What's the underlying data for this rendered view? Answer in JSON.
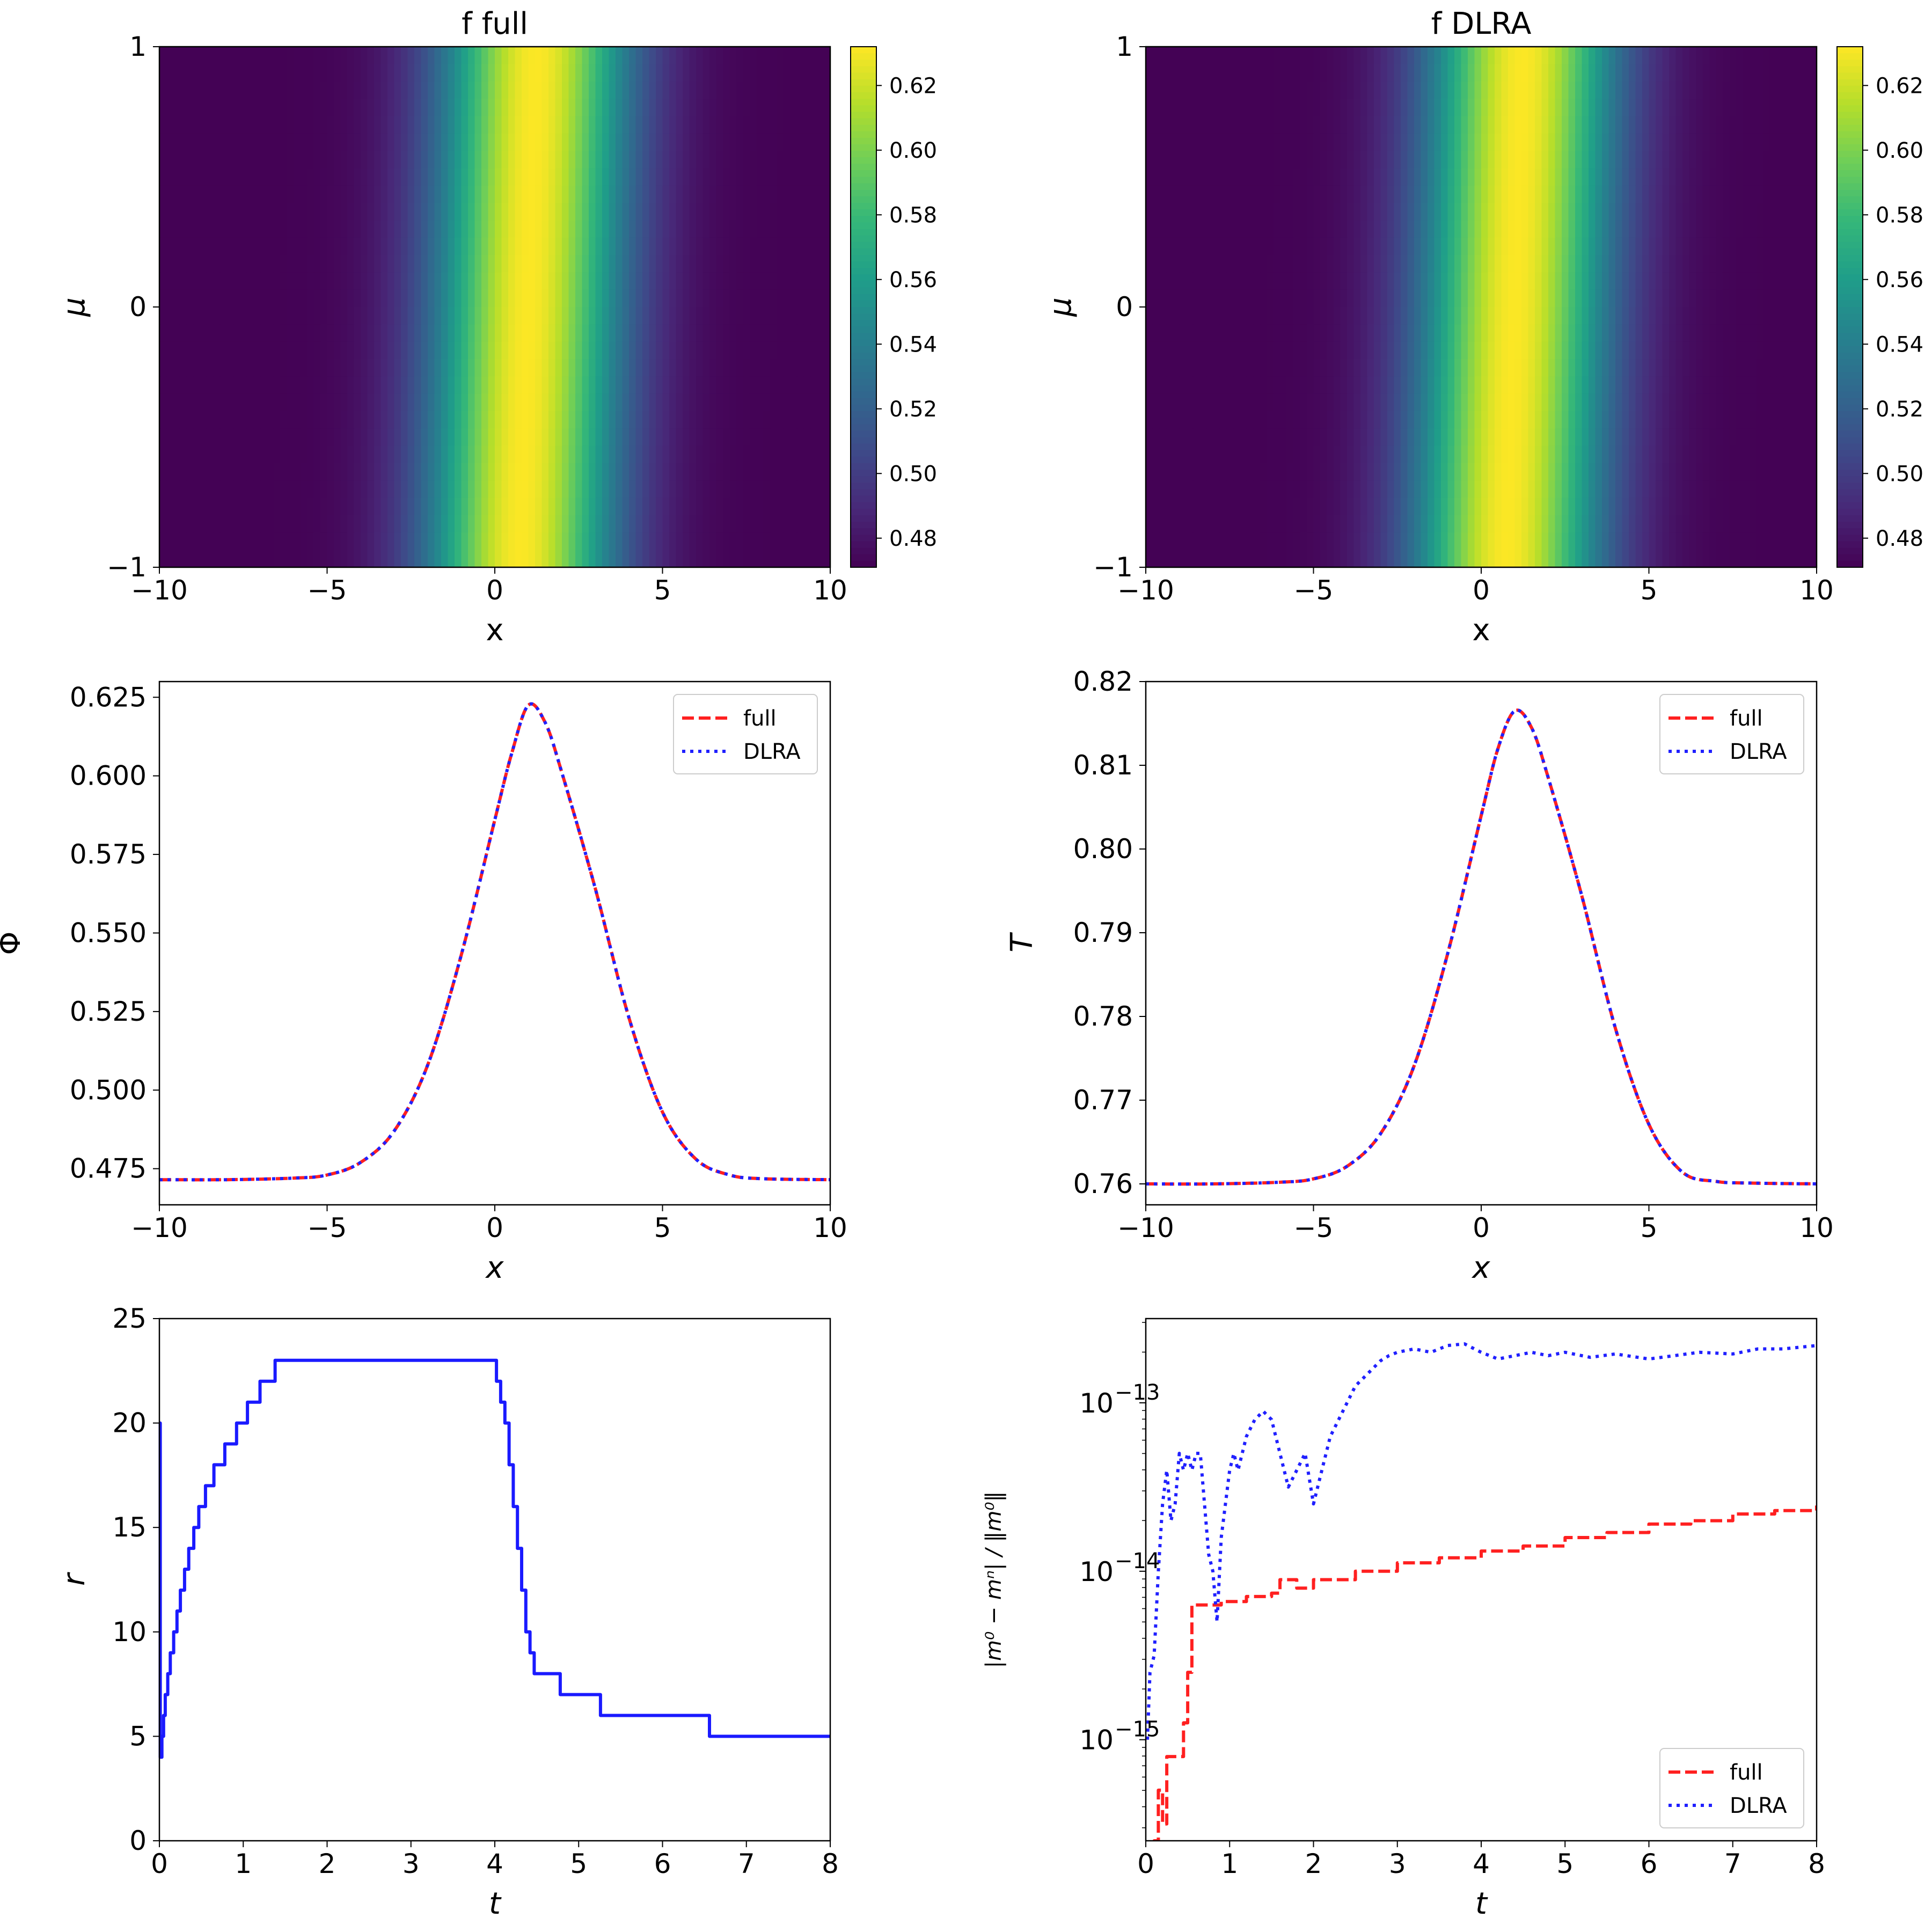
{
  "chart_data": [
    {
      "type": "heatmap",
      "title": "f full",
      "xlabel": "x",
      "ylabel": "μ",
      "xlim": [
        -10,
        10
      ],
      "ylim": [
        -1,
        1
      ],
      "xticks": [
        -10,
        -5,
        0,
        5,
        10
      ],
      "yticks": [
        -1,
        0,
        1
      ],
      "xtick_labels": [
        "−10",
        "−5",
        "0",
        "5",
        "10"
      ],
      "ytick_labels": [
        "−1",
        "0",
        "1"
      ],
      "profile": {
        "center": 1.0,
        "width": 2.0,
        "tilt": 0.25,
        "min": 0.4715,
        "max": 0.6315
      },
      "colorbar": {
        "vmin": 0.471,
        "vmax": 0.632,
        "ticks": [
          0.48,
          0.5,
          0.52,
          0.54,
          0.56,
          0.58,
          0.6,
          0.62
        ],
        "tick_labels": [
          "0.48",
          "0.50",
          "0.52",
          "0.54",
          "0.56",
          "0.58",
          "0.60",
          "0.62"
        ]
      }
    },
    {
      "type": "heatmap",
      "title": "f DLRA",
      "xlabel": "x",
      "ylabel": "μ",
      "xlim": [
        -10,
        10
      ],
      "ylim": [
        -1,
        1
      ],
      "xticks": [
        -10,
        -5,
        0,
        5,
        10
      ],
      "yticks": [
        -1,
        0,
        1
      ],
      "xtick_labels": [
        "−10",
        "−5",
        "0",
        "5",
        "10"
      ],
      "ytick_labels": [
        "−1",
        "0",
        "1"
      ],
      "profile": {
        "center": 1.0,
        "width": 2.0,
        "tilt": 0.25,
        "min": 0.4715,
        "max": 0.6315
      },
      "colorbar": {
        "vmin": 0.471,
        "vmax": 0.632,
        "ticks": [
          0.48,
          0.5,
          0.52,
          0.54,
          0.56,
          0.58,
          0.6,
          0.62
        ],
        "tick_labels": [
          "0.48",
          "0.50",
          "0.52",
          "0.54",
          "0.56",
          "0.58",
          "0.60",
          "0.62"
        ]
      }
    },
    {
      "type": "line",
      "xlabel": "x",
      "ylabel": "Φ",
      "xlim": [
        -10,
        10
      ],
      "ylim": [
        0.4635,
        0.63
      ],
      "xticks": [
        -10,
        -5,
        0,
        5,
        10
      ],
      "xtick_labels": [
        "−10",
        "−5",
        "0",
        "5",
        "10"
      ],
      "yticks": [
        0.475,
        0.5,
        0.525,
        0.55,
        0.575,
        0.6,
        0.625
      ],
      "ytick_labels": [
        "0.475",
        "0.500",
        "0.525",
        "0.550",
        "0.575",
        "0.600",
        "0.625"
      ],
      "x": [
        -10,
        -8,
        -6,
        -5,
        -4,
        -3,
        -2,
        -1,
        0,
        0.5,
        1,
        1.5,
        2,
        3,
        4,
        5,
        6,
        7,
        8,
        10
      ],
      "series": [
        {
          "name": "full",
          "values": [
            0.4715,
            0.4715,
            0.472,
            0.473,
            0.477,
            0.487,
            0.508,
            0.543,
            0.586,
            0.607,
            0.6225,
            0.617,
            0.601,
            0.564,
            0.523,
            0.493,
            0.478,
            0.473,
            0.4718,
            0.4715
          ]
        },
        {
          "name": "DLRA",
          "values": [
            0.4715,
            0.4715,
            0.472,
            0.473,
            0.477,
            0.487,
            0.508,
            0.543,
            0.586,
            0.607,
            0.6225,
            0.617,
            0.601,
            0.564,
            0.523,
            0.493,
            0.478,
            0.473,
            0.4718,
            0.4715
          ]
        }
      ],
      "legend": [
        "full",
        "DLRA"
      ],
      "legend_position": "upper right"
    },
    {
      "type": "line",
      "xlabel": "x",
      "ylabel": "T",
      "xlim": [
        -10,
        10
      ],
      "ylim": [
        0.7575,
        0.82
      ],
      "xticks": [
        -10,
        -5,
        0,
        5,
        10
      ],
      "xtick_labels": [
        "−10",
        "−5",
        "0",
        "5",
        "10"
      ],
      "yticks": [
        0.76,
        0.77,
        0.78,
        0.79,
        0.8,
        0.81,
        0.82
      ],
      "ytick_labels": [
        "0.76",
        "0.77",
        "0.78",
        "0.79",
        "0.80",
        "0.81",
        "0.82"
      ],
      "x": [
        -10,
        -8,
        -6,
        -5,
        -4,
        -3,
        -2,
        -1,
        0,
        0.5,
        1,
        1.5,
        2,
        3,
        4,
        5,
        6,
        7,
        8,
        10
      ],
      "series": [
        {
          "name": "full",
          "values": [
            0.76,
            0.76,
            0.7602,
            0.7606,
            0.7621,
            0.766,
            0.7741,
            0.7875,
            0.804,
            0.812,
            0.8165,
            0.8145,
            0.8085,
            0.7944,
            0.7786,
            0.7671,
            0.7614,
            0.7603,
            0.7601,
            0.76
          ]
        },
        {
          "name": "DLRA",
          "values": [
            0.76,
            0.76,
            0.7602,
            0.7606,
            0.7621,
            0.766,
            0.7741,
            0.7875,
            0.804,
            0.812,
            0.8165,
            0.8145,
            0.8085,
            0.7944,
            0.7786,
            0.7671,
            0.7614,
            0.7603,
            0.7601,
            0.76
          ]
        }
      ],
      "legend": [
        "full",
        "DLRA"
      ],
      "legend_position": "upper right"
    },
    {
      "type": "line",
      "xlabel": "t",
      "ylabel": "r",
      "xlim": [
        0,
        8
      ],
      "ylim": [
        0,
        25
      ],
      "xticks": [
        0,
        1,
        2,
        3,
        4,
        5,
        6,
        7,
        8
      ],
      "xtick_labels": [
        "0",
        "1",
        "2",
        "3",
        "4",
        "5",
        "6",
        "7",
        "8"
      ],
      "yticks": [
        0,
        5,
        10,
        15,
        20,
        25
      ],
      "ytick_labels": [
        "0",
        "5",
        "10",
        "15",
        "20",
        "25"
      ],
      "series": [
        {
          "name": "r",
          "x": [
            0,
            0.01,
            0.03,
            0.05,
            0.07,
            0.1,
            0.13,
            0.17,
            0.21,
            0.25,
            0.3,
            0.35,
            0.41,
            0.47,
            0.55,
            0.65,
            0.78,
            0.92,
            1.05,
            1.2,
            1.38,
            1.55,
            1.78,
            3.95,
            4.02,
            4.07,
            4.12,
            4.17,
            4.22,
            4.27,
            4.32,
            4.37,
            4.42,
            4.47,
            4.55,
            4.78,
            5.26,
            6.56,
            8.0
          ],
          "values": [
            20,
            4,
            5,
            6,
            7,
            8,
            9,
            10,
            11,
            12,
            13,
            14,
            15,
            16,
            17,
            18,
            19,
            20,
            21,
            22,
            23,
            23,
            23,
            23,
            22,
            21,
            20,
            18,
            16,
            14,
            12,
            10,
            9,
            8,
            8,
            7,
            6,
            5,
            5
          ]
        }
      ]
    },
    {
      "type": "line",
      "scale_y": "log",
      "xlabel": "t",
      "ylabel": "|m⁰ − mⁿ| / ‖m⁰‖",
      "xlim": [
        0,
        8
      ],
      "ylim_exponent": [
        -15.6,
        -12.5
      ],
      "xticks": [
        0,
        1,
        2,
        3,
        4,
        5,
        6,
        7,
        8
      ],
      "xtick_labels": [
        "0",
        "1",
        "2",
        "3",
        "4",
        "5",
        "6",
        "7",
        "8"
      ],
      "yticks_exponent": [
        -15,
        -14,
        -13
      ],
      "ytick_labels": [
        "10",
        "10",
        "10"
      ],
      "ytick_exponent_labels": [
        "−15",
        "−14",
        "−13"
      ],
      "series": [
        {
          "name": "full",
          "x": [
            0.05,
            0.1,
            0.15,
            0.2,
            0.25,
            0.3,
            0.35,
            0.4,
            0.45,
            0.5,
            0.55,
            0.7,
            0.9,
            1.2,
            1.5,
            1.6,
            1.8,
            2.0,
            2.5,
            3.0,
            3.5,
            4.0,
            4.5,
            5.0,
            5.5,
            6.0,
            6.5,
            7.0,
            7.5,
            8.0
          ],
          "values": [
            -15.7,
            -15.6,
            -15.3,
            -15.5,
            -15.1,
            -15.1,
            -15.1,
            -15.1,
            -14.9,
            -14.6,
            -14.2,
            -14.2,
            -14.18,
            -14.15,
            -14.13,
            -14.05,
            -14.1,
            -14.05,
            -14.0,
            -13.95,
            -13.92,
            -13.88,
            -13.85,
            -13.8,
            -13.77,
            -13.72,
            -13.7,
            -13.66,
            -13.64,
            -13.61
          ]
        },
        {
          "name": "DLRA",
          "x": [
            0.02,
            0.05,
            0.1,
            0.15,
            0.2,
            0.25,
            0.3,
            0.35,
            0.4,
            0.45,
            0.5,
            0.55,
            0.6,
            0.65,
            0.7,
            0.75,
            0.8,
            0.85,
            0.9,
            1.0,
            1.05,
            1.1,
            1.15,
            1.2,
            1.3,
            1.4,
            1.5,
            1.6,
            1.7,
            1.8,
            1.9,
            2.0,
            2.1,
            2.2,
            2.3,
            2.4,
            2.5,
            2.6,
            2.7,
            2.8,
            2.9,
            3.0,
            3.2,
            3.4,
            3.6,
            3.8,
            4.0,
            4.2,
            4.4,
            4.6,
            4.8,
            5.0,
            5.3,
            5.6,
            6.0,
            6.3,
            6.6,
            7.0,
            7.3,
            7.6,
            8.0
          ],
          "values": [
            -15.0,
            -14.6,
            -14.5,
            -14.0,
            -13.6,
            -13.4,
            -13.7,
            -13.6,
            -13.3,
            -13.4,
            -13.3,
            -13.4,
            -13.3,
            -13.3,
            -13.6,
            -13.9,
            -14.0,
            -14.3,
            -13.8,
            -13.4,
            -13.3,
            -13.4,
            -13.3,
            -13.2,
            -13.1,
            -13.05,
            -13.1,
            -13.3,
            -13.5,
            -13.4,
            -13.3,
            -13.6,
            -13.4,
            -13.2,
            -13.1,
            -13.0,
            -12.9,
            -12.85,
            -12.8,
            -12.75,
            -12.72,
            -12.7,
            -12.68,
            -12.7,
            -12.66,
            -12.65,
            -12.7,
            -12.74,
            -12.72,
            -12.7,
            -12.72,
            -12.7,
            -12.73,
            -12.71,
            -12.74,
            -12.72,
            -12.7,
            -12.71,
            -12.68,
            -12.68,
            -12.66
          ]
        }
      ],
      "legend": [
        "full",
        "DLRA"
      ],
      "legend_position": "lower right"
    }
  ],
  "styles": {
    "full": {
      "color": "#ff2020",
      "dash": "dashed"
    },
    "DLRA": {
      "color": "#2020ff",
      "dash": "dotted"
    },
    "rank": {
      "color": "#1a1aff"
    }
  }
}
